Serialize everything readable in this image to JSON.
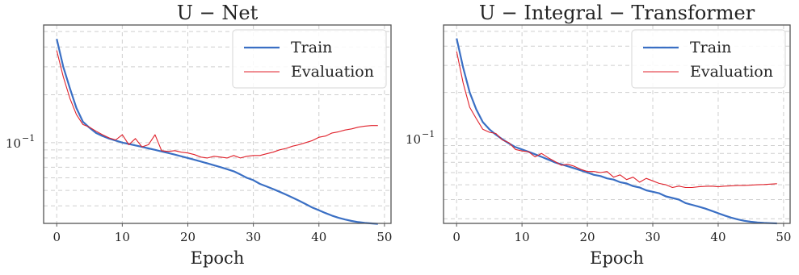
{
  "chart_data": [
    {
      "type": "line",
      "title": "U − Net",
      "xlabel": "Epoch",
      "ylabel": "",
      "yscale": "log",
      "xlim": [
        -2,
        51
      ],
      "ylim": [
        0.031,
        0.55
      ],
      "xticks": [
        0,
        10,
        20,
        30,
        40,
        50
      ],
      "yticks": [
        {
          "value": 0.1,
          "base": "10",
          "exp": "−1"
        }
      ],
      "grid": true,
      "legend": "top-right",
      "x": [
        0,
        1,
        2,
        3,
        4,
        5,
        6,
        7,
        8,
        9,
        10,
        11,
        12,
        13,
        14,
        15,
        16,
        17,
        18,
        19,
        20,
        21,
        22,
        23,
        24,
        25,
        26,
        27,
        28,
        29,
        30,
        31,
        32,
        33,
        34,
        35,
        36,
        37,
        38,
        39,
        40,
        41,
        42,
        43,
        44,
        45,
        46,
        47,
        48,
        49
      ],
      "series": [
        {
          "name": "Train",
          "color": "#3a6fc4",
          "values": [
            0.45,
            0.3,
            0.22,
            0.165,
            0.135,
            0.124,
            0.115,
            0.11,
            0.106,
            0.103,
            0.1,
            0.098,
            0.096,
            0.094,
            0.092,
            0.09,
            0.088,
            0.086,
            0.084,
            0.082,
            0.08,
            0.078,
            0.076,
            0.074,
            0.072,
            0.07,
            0.068,
            0.066,
            0.063,
            0.06,
            0.058,
            0.055,
            0.053,
            0.051,
            0.049,
            0.047,
            0.045,
            0.043,
            0.041,
            0.039,
            0.0375,
            0.036,
            0.0347,
            0.0336,
            0.0328,
            0.0321,
            0.0316,
            0.0312,
            0.031,
            0.0308
          ]
        },
        {
          "name": "Evaluation",
          "color": "#e0212b",
          "values": [
            0.38,
            0.26,
            0.19,
            0.15,
            0.13,
            0.125,
            0.118,
            0.112,
            0.107,
            0.104,
            0.112,
            0.097,
            0.106,
            0.094,
            0.097,
            0.112,
            0.089,
            0.088,
            0.089,
            0.087,
            0.086,
            0.084,
            0.081,
            0.08,
            0.082,
            0.081,
            0.08,
            0.083,
            0.08,
            0.082,
            0.083,
            0.083,
            0.085,
            0.087,
            0.09,
            0.092,
            0.095,
            0.097,
            0.1,
            0.103,
            0.108,
            0.11,
            0.115,
            0.117,
            0.12,
            0.122,
            0.125,
            0.127,
            0.128,
            0.128
          ]
        }
      ]
    },
    {
      "type": "line",
      "title": "U − Integral − Transformer",
      "xlabel": "Epoch",
      "ylabel": "",
      "yscale": "log",
      "xlim": [
        -2,
        51
      ],
      "ylim": [
        0.028,
        0.55
      ],
      "xticks": [
        0,
        10,
        20,
        30,
        40,
        50
      ],
      "yticks": [
        {
          "value": 0.1,
          "base": "10",
          "exp": "−1"
        }
      ],
      "grid": true,
      "legend": "top-right",
      "x": [
        0,
        1,
        2,
        3,
        4,
        5,
        6,
        7,
        8,
        9,
        10,
        11,
        12,
        13,
        14,
        15,
        16,
        17,
        18,
        19,
        20,
        21,
        22,
        23,
        24,
        25,
        26,
        27,
        28,
        29,
        30,
        31,
        32,
        33,
        34,
        35,
        36,
        37,
        38,
        39,
        40,
        41,
        42,
        43,
        44,
        45,
        46,
        47,
        48,
        49
      ],
      "series": [
        {
          "name": "Train",
          "color": "#3a6fc4",
          "values": [
            0.45,
            0.29,
            0.2,
            0.155,
            0.128,
            0.115,
            0.106,
            0.099,
            0.093,
            0.088,
            0.085,
            0.082,
            0.079,
            0.076,
            0.073,
            0.07,
            0.068,
            0.066,
            0.064,
            0.062,
            0.06,
            0.058,
            0.057,
            0.055,
            0.054,
            0.052,
            0.051,
            0.049,
            0.048,
            0.046,
            0.045,
            0.044,
            0.042,
            0.041,
            0.04,
            0.038,
            0.037,
            0.036,
            0.035,
            0.0338,
            0.0326,
            0.0315,
            0.0305,
            0.0297,
            0.0291,
            0.0287,
            0.0284,
            0.0282,
            0.0281,
            0.028
          ]
        },
        {
          "name": "Evaluation",
          "color": "#e0212b",
          "values": [
            0.37,
            0.23,
            0.16,
            0.135,
            0.115,
            0.11,
            0.108,
            0.098,
            0.094,
            0.085,
            0.083,
            0.082,
            0.076,
            0.08,
            0.075,
            0.071,
            0.067,
            0.068,
            0.066,
            0.063,
            0.061,
            0.061,
            0.06,
            0.061,
            0.056,
            0.058,
            0.054,
            0.056,
            0.052,
            0.055,
            0.053,
            0.051,
            0.05,
            0.048,
            0.049,
            0.048,
            0.048,
            0.0485,
            0.0488,
            0.049,
            0.0485,
            0.049,
            0.0492,
            0.0495,
            0.0495,
            0.0497,
            0.05,
            0.0502,
            0.0505,
            0.0508
          ]
        }
      ]
    }
  ]
}
